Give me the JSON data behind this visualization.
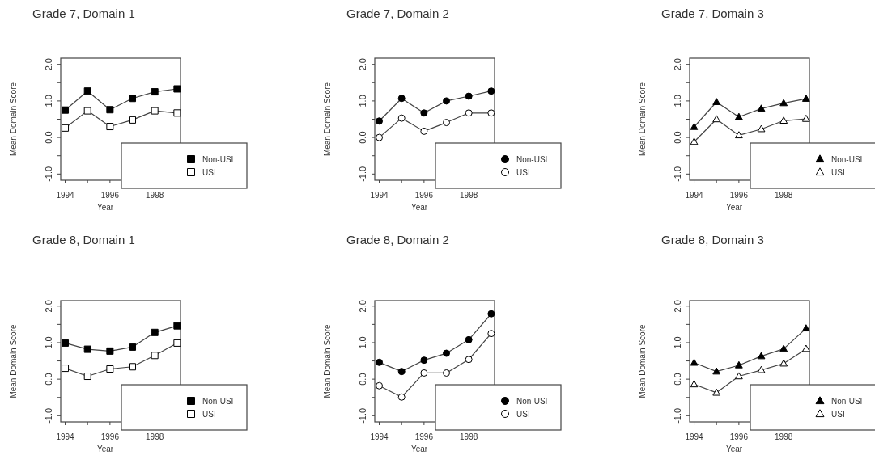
{
  "chart_data": [
    {
      "type": "line",
      "title": "Grade 7, Domain 1",
      "xlabel": "Year",
      "ylabel": "Mean Domain Score",
      "x": [
        1994,
        1995,
        1996,
        1997,
        1998,
        1999
      ],
      "xlim": [
        1993.8,
        1999.15
      ],
      "ylim": [
        -1.17,
        2.17
      ],
      "xticks": [
        1994,
        {
          "value": 1995,
          "label": null
        },
        1996,
        {
          "value": 1997,
          "label": null
        },
        1998,
        {
          "value": 1999,
          "label": null
        }
      ],
      "yticks": [
        {
          "value": -1,
          "label": "-1.0"
        },
        {
          "value": -0.5,
          "label": null
        },
        {
          "value": 0,
          "label": "0.0"
        },
        {
          "value": 0.5,
          "label": null
        },
        {
          "value": 1,
          "label": "1.0"
        },
        {
          "value": 1.5,
          "label": null
        },
        {
          "value": 2,
          "label": "2.0"
        }
      ],
      "legend": "bottom right",
      "line_style": "solid",
      "series": [
        {
          "name": "Non-USI",
          "color": "#000000",
          "marker": "square",
          "values": [
            0.75,
            1.27,
            0.76,
            1.07,
            1.25,
            1.33
          ]
        },
        {
          "name": "USI",
          "color": "#ffffff",
          "marker": "square",
          "values": [
            0.26,
            0.73,
            0.3,
            0.48,
            0.73,
            0.67
          ]
        }
      ]
    },
    {
      "type": "line",
      "title": "Grade 7, Domain 2",
      "xlabel": "Year",
      "ylabel": "Mean Domain Score",
      "x": [
        1994,
        1995,
        1996,
        1997,
        1998,
        1999
      ],
      "xlim": [
        1993.8,
        1999.15
      ],
      "ylim": [
        -1.17,
        2.17
      ],
      "xticks": [
        1994,
        {
          "value": 1995,
          "label": null
        },
        1996,
        {
          "value": 1997,
          "label": null
        },
        1998,
        {
          "value": 1999,
          "label": null
        }
      ],
      "yticks": [
        {
          "value": -1,
          "label": "-1.0"
        },
        {
          "value": -0.5,
          "label": null
        },
        {
          "value": 0,
          "label": "0.0"
        },
        {
          "value": 0.5,
          "label": null
        },
        {
          "value": 1,
          "label": "1.0"
        },
        {
          "value": 1.5,
          "label": null
        },
        {
          "value": 2,
          "label": "2.0"
        }
      ],
      "legend": "bottom right",
      "line_style": "solid",
      "series": [
        {
          "name": "Non-USI",
          "color": "#000000",
          "marker": "circle",
          "values": [
            0.45,
            1.07,
            0.67,
            1.0,
            1.13,
            1.27
          ]
        },
        {
          "name": "USI",
          "color": "#ffffff",
          "marker": "circle",
          "values": [
            0.0,
            0.53,
            0.17,
            0.41,
            0.67,
            0.67
          ]
        }
      ]
    },
    {
      "type": "line",
      "title": "Grade 7, Domain 3",
      "xlabel": "Year",
      "ylabel": "Mean Domain Score",
      "x": [
        1994,
        1995,
        1996,
        1997,
        1998,
        1999
      ],
      "xlim": [
        1993.8,
        1999.15
      ],
      "ylim": [
        -1.17,
        2.17
      ],
      "xticks": [
        1994,
        {
          "value": 1995,
          "label": null
        },
        1996,
        {
          "value": 1997,
          "label": null
        },
        1998,
        {
          "value": 1999,
          "label": null
        }
      ],
      "yticks": [
        {
          "value": -1,
          "label": "-1.0"
        },
        {
          "value": -0.5,
          "label": null
        },
        {
          "value": 0,
          "label": "0.0"
        },
        {
          "value": 0.5,
          "label": null
        },
        {
          "value": 1,
          "label": "1.0"
        },
        {
          "value": 1.5,
          "label": null
        },
        {
          "value": 2,
          "label": "2.0"
        }
      ],
      "legend": "bottom right",
      "line_style": "solid",
      "series": [
        {
          "name": "Non-USI",
          "color": "#000000",
          "marker": "triangle",
          "values": [
            0.29,
            0.97,
            0.56,
            0.79,
            0.94,
            1.06
          ]
        },
        {
          "name": "USI",
          "color": "#ffffff",
          "marker": "triangle",
          "values": [
            -0.12,
            0.5,
            0.06,
            0.23,
            0.46,
            0.51
          ]
        }
      ]
    },
    {
      "type": "line",
      "title": "Grade 8, Domain 1",
      "xlabel": "Year",
      "ylabel": "Mean Domain Score",
      "x": [
        1994,
        1995,
        1996,
        1997,
        1998,
        1999
      ],
      "xlim": [
        1993.8,
        1999.15
      ],
      "ylim": [
        -1.17,
        2.15
      ],
      "xticks": [
        1994,
        {
          "value": 1995,
          "label": null
        },
        1996,
        {
          "value": 1997,
          "label": null
        },
        1998,
        {
          "value": 1999,
          "label": null
        }
      ],
      "yticks": [
        {
          "value": -1,
          "label": "-1.0"
        },
        {
          "value": -0.5,
          "label": null
        },
        {
          "value": 0,
          "label": "0.0"
        },
        {
          "value": 0.5,
          "label": null
        },
        {
          "value": 1,
          "label": "1.0"
        },
        {
          "value": 1.5,
          "label": null
        },
        {
          "value": 2,
          "label": "2.0"
        }
      ],
      "legend": "bottom right",
      "line_style": "solid",
      "series": [
        {
          "name": "Non-USI",
          "color": "#000000",
          "marker": "square",
          "values": [
            0.99,
            0.82,
            0.77,
            0.88,
            1.28,
            1.46
          ]
        },
        {
          "name": "USI",
          "color": "#ffffff",
          "marker": "square",
          "values": [
            0.3,
            0.08,
            0.28,
            0.34,
            0.65,
            0.99
          ]
        }
      ]
    },
    {
      "type": "line",
      "title": "Grade 8, Domain 2",
      "xlabel": "Year",
      "ylabel": "Mean Domain Score",
      "x": [
        1994,
        1995,
        1996,
        1997,
        1998,
        1999
      ],
      "xlim": [
        1993.8,
        1999.15
      ],
      "ylim": [
        -1.17,
        2.15
      ],
      "xticks": [
        1994,
        {
          "value": 1995,
          "label": null
        },
        1996,
        {
          "value": 1997,
          "label": null
        },
        1998,
        {
          "value": 1999,
          "label": null
        }
      ],
      "yticks": [
        {
          "value": -1,
          "label": "-1.0"
        },
        {
          "value": -0.5,
          "label": null
        },
        {
          "value": 0,
          "label": "0.0"
        },
        {
          "value": 0.5,
          "label": null
        },
        {
          "value": 1,
          "label": "1.0"
        },
        {
          "value": 1.5,
          "label": null
        },
        {
          "value": 2,
          "label": "2.0"
        }
      ],
      "legend": "bottom right",
      "line_style": "solid",
      "series": [
        {
          "name": "Non-USI",
          "color": "#000000",
          "marker": "circle",
          "values": [
            0.46,
            0.21,
            0.52,
            0.71,
            1.08,
            1.79
          ]
        },
        {
          "name": "USI",
          "color": "#ffffff",
          "marker": "circle",
          "values": [
            -0.18,
            -0.49,
            0.17,
            0.17,
            0.54,
            1.25
          ]
        }
      ]
    },
    {
      "type": "line",
      "title": "Grade 8, Domain 3",
      "xlabel": "Year",
      "ylabel": "Mean Domain Score",
      "x": [
        1994,
        1995,
        1996,
        1997,
        1998,
        1999
      ],
      "xlim": [
        1993.8,
        1999.15
      ],
      "ylim": [
        -1.17,
        2.15
      ],
      "xticks": [
        1994,
        {
          "value": 1995,
          "label": null
        },
        1996,
        {
          "value": 1997,
          "label": null
        },
        1998,
        {
          "value": 1999,
          "label": null
        }
      ],
      "yticks": [
        {
          "value": -1,
          "label": "-1.0"
        },
        {
          "value": -0.5,
          "label": null
        },
        {
          "value": 0,
          "label": "0.0"
        },
        {
          "value": 0.5,
          "label": null
        },
        {
          "value": 1,
          "label": "1.0"
        },
        {
          "value": 1.5,
          "label": null
        },
        {
          "value": 2,
          "label": "2.0"
        }
      ],
      "legend": "bottom right",
      "line_style": "solid",
      "series": [
        {
          "name": "Non-USI",
          "color": "#000000",
          "marker": "triangle",
          "values": [
            0.45,
            0.21,
            0.38,
            0.63,
            0.83,
            1.39
          ]
        },
        {
          "name": "USI",
          "color": "#ffffff",
          "marker": "triangle",
          "values": [
            -0.14,
            -0.37,
            0.08,
            0.25,
            0.43,
            0.83
          ]
        }
      ]
    }
  ]
}
